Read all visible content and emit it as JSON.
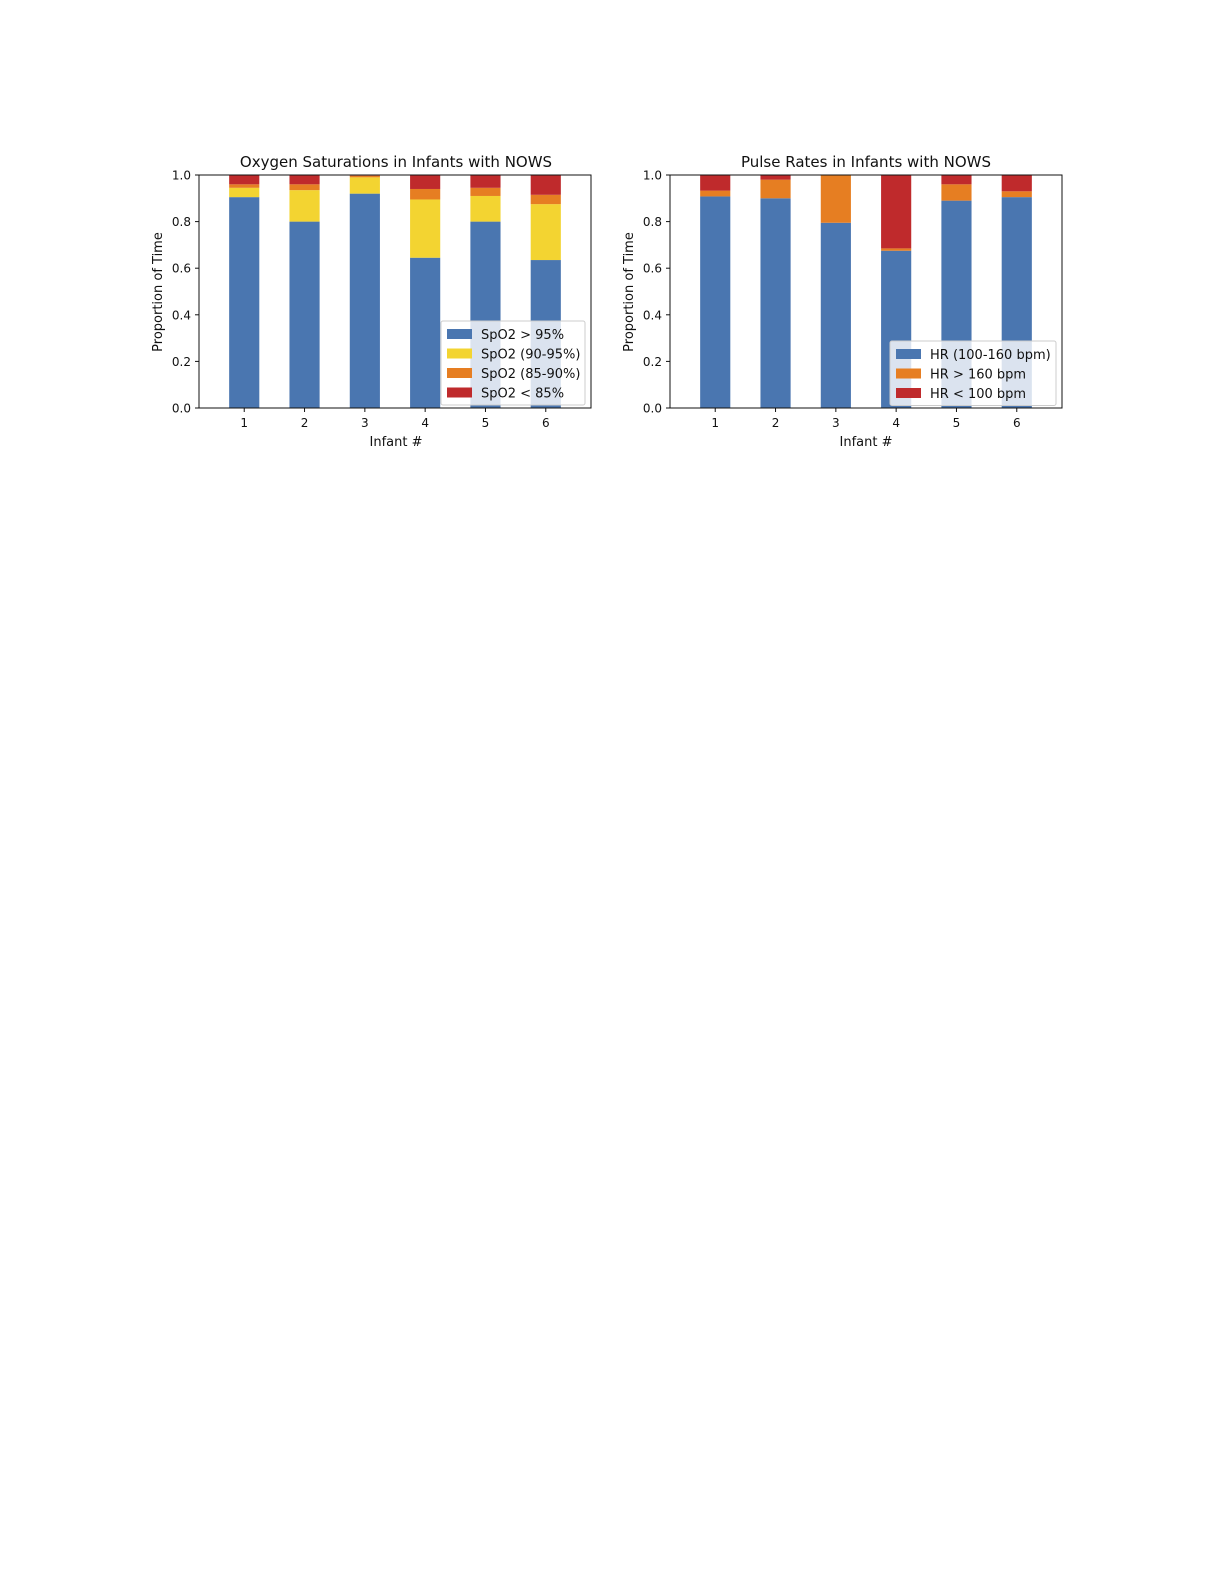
{
  "chart_data": [
    {
      "type": "bar",
      "stacked": true,
      "title": "Oxygen Saturations in Infants with NOWS",
      "xlabel": "Infant #",
      "ylabel": "Proportion of Time",
      "categories": [
        "1",
        "2",
        "3",
        "4",
        "5",
        "6"
      ],
      "ylim": [
        0,
        1
      ],
      "yticks": [
        "0.0",
        "0.2",
        "0.4",
        "0.6",
        "0.8",
        "1.0"
      ],
      "legend_position": "lower-right",
      "grid": false,
      "series": [
        {
          "name": "SpO2 > 95%",
          "color": "#4a76b0",
          "values": [
            0.905,
            0.8,
            0.92,
            0.645,
            0.8,
            0.635
          ]
        },
        {
          "name": "SpO2 (90-95%)",
          "color": "#f3d431",
          "values": [
            0.04,
            0.135,
            0.07,
            0.25,
            0.11,
            0.24
          ]
        },
        {
          "name": "SpO2 (85-90%)",
          "color": "#e67e22",
          "values": [
            0.015,
            0.025,
            0.007,
            0.045,
            0.035,
            0.04
          ]
        },
        {
          "name": "SpO2 < 85%",
          "color": "#bf2a2c",
          "values": [
            0.04,
            0.04,
            0.003,
            0.06,
            0.055,
            0.085
          ]
        }
      ]
    },
    {
      "type": "bar",
      "stacked": true,
      "title": "Pulse Rates in Infants with NOWS",
      "xlabel": "Infant #",
      "ylabel": "Proportion of Time",
      "categories": [
        "1",
        "2",
        "3",
        "4",
        "5",
        "6"
      ],
      "ylim": [
        0,
        1
      ],
      "yticks": [
        "0.0",
        "0.2",
        "0.4",
        "0.6",
        "0.8",
        "1.0"
      ],
      "legend_position": "lower-right",
      "grid": false,
      "series": [
        {
          "name": "HR (100-160 bpm)",
          "color": "#4a76b0",
          "values": [
            0.908,
            0.9,
            0.795,
            0.675,
            0.89,
            0.905
          ]
        },
        {
          "name": "HR > 160 bpm",
          "color": "#e67e22",
          "values": [
            0.025,
            0.08,
            0.205,
            0.01,
            0.07,
            0.025
          ]
        },
        {
          "name": "HR < 100 bpm",
          "color": "#bf2a2c",
          "values": [
            0.067,
            0.02,
            0.0,
            0.315,
            0.04,
            0.07
          ]
        }
      ]
    }
  ]
}
